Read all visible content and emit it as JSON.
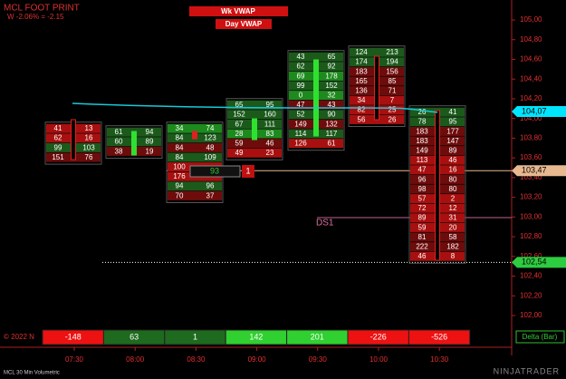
{
  "header": {
    "title": "MCL FOOT PRINT",
    "subtitle": "W -2.06% = -2.15"
  },
  "buttons": [
    "Wk VWAP",
    "Day VWAP"
  ],
  "price_axis": {
    "ticks": [
      {
        "value": 105.0,
        "label": "105,00"
      },
      {
        "value": 104.8,
        "label": "104,80"
      },
      {
        "value": 104.6,
        "label": "104,60"
      },
      {
        "value": 104.4,
        "label": "104,40"
      },
      {
        "value": 104.2,
        "label": "104,20"
      },
      {
        "value": 104.0,
        "label": "104,00"
      },
      {
        "value": 103.8,
        "label": "103,80"
      },
      {
        "value": 103.6,
        "label": "103,60"
      },
      {
        "value": 103.4,
        "label": "103,40"
      },
      {
        "value": 103.2,
        "label": "103,20"
      },
      {
        "value": 103.0,
        "label": "103,00"
      },
      {
        "value": 102.8,
        "label": "102,80"
      },
      {
        "value": 102.6,
        "label": "102,60"
      },
      {
        "value": 102.4,
        "label": "102,40"
      },
      {
        "value": 102.2,
        "label": "102,20"
      },
      {
        "value": 102.0,
        "label": "102,00"
      }
    ]
  },
  "price_tags": [
    {
      "value": 104.07,
      "label": "104,07",
      "color": "#00e5ff"
    },
    {
      "value": 103.47,
      "label": "103,47",
      "color": "#e8b890"
    },
    {
      "value": 102.54,
      "label": "102,54",
      "color": "#2ecc40"
    }
  ],
  "time_labels": [
    "07:30",
    "08:00",
    "08:30",
    "09:00",
    "09:30",
    "10:00",
    "10:30"
  ],
  "footprint": [
    {
      "rows": [
        [
          41,
          13
        ],
        [
          62,
          16
        ],
        [
          99,
          103
        ],
        [
          151,
          76
        ]
      ]
    },
    {
      "rows": [
        [
          61,
          94
        ],
        [
          60,
          89
        ],
        [
          38,
          19
        ]
      ]
    },
    {
      "rows": [
        [
          34,
          74
        ],
        [
          84,
          123
        ],
        [
          84,
          48
        ],
        [
          84,
          109
        ],
        [
          100
        ],
        [
          176
        ],
        [
          94,
          96
        ],
        [
          70,
          37
        ]
      ]
    },
    {
      "rows": [
        [
          65,
          95
        ],
        [
          152,
          160
        ],
        [
          67,
          111
        ],
        [
          28,
          83
        ],
        [
          59,
          46
        ],
        [
          49,
          23
        ]
      ]
    },
    {
      "rows": [
        [
          43,
          65
        ],
        [
          62,
          92
        ],
        [
          69,
          178
        ],
        [
          99,
          152
        ],
        [
          0,
          32
        ],
        [
          47,
          43
        ],
        [
          52,
          90
        ],
        [
          149,
          132
        ],
        [
          114,
          117
        ],
        [
          126,
          61
        ]
      ]
    },
    {
      "rows": [
        [
          124,
          213
        ],
        [
          174,
          194
        ],
        [
          183,
          156
        ],
        [
          165,
          85
        ],
        [
          136,
          71
        ],
        [
          34,
          7
        ],
        [
          82,
          25
        ],
        [
          56,
          26
        ]
      ]
    },
    {
      "rows": [
        [
          26,
          41
        ],
        [
          78,
          95
        ],
        [
          183,
          177
        ],
        [
          183,
          147
        ],
        [
          149,
          89
        ],
        [
          113,
          46
        ],
        [
          47,
          16
        ],
        [
          96,
          80
        ],
        [
          98,
          80
        ],
        [
          57,
          2
        ],
        [
          72,
          12
        ],
        [
          89,
          31
        ],
        [
          59,
          20
        ],
        [
          81,
          58
        ],
        [
          222,
          182
        ],
        [
          46,
          8
        ]
      ]
    }
  ],
  "marker": {
    "volume": 93,
    "count": 1
  },
  "ds_label": "DS1",
  "delta": {
    "label": "Delta (Bar)",
    "values": [
      -148,
      63,
      1,
      142,
      201,
      -226,
      -526
    ]
  },
  "footer": {
    "copyright": "© 2022 N",
    "instrument": "MCL 30 Min Volumetric",
    "brand": "NINJATRADER"
  }
}
